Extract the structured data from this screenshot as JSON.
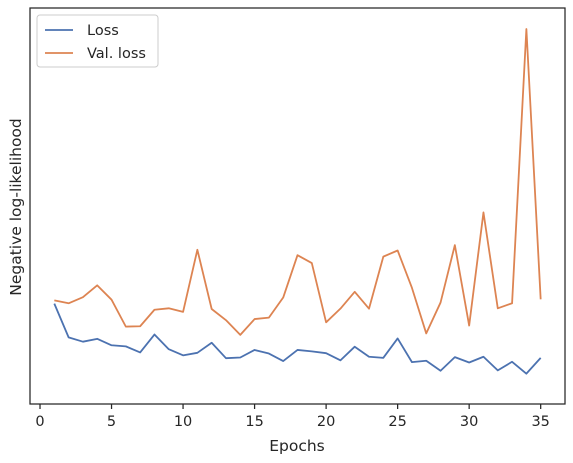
{
  "chart_data": {
    "type": "line",
    "title": "",
    "xlabel": "Epochs",
    "ylabel": "Negative log-likelihood",
    "xlim": [
      -0.7,
      36.7
    ],
    "ylim": [
      0,
      1
    ],
    "x_ticks": [
      0,
      5,
      10,
      15,
      20,
      25,
      30,
      35
    ],
    "y_ticks_shown": false,
    "grid": false,
    "legend_position": "top-left",
    "x": [
      1,
      2,
      3,
      4,
      5,
      6,
      7,
      8,
      9,
      10,
      11,
      12,
      13,
      14,
      15,
      16,
      17,
      18,
      19,
      20,
      21,
      22,
      23,
      24,
      25,
      26,
      27,
      28,
      29,
      30,
      31,
      32,
      33,
      34,
      35
    ],
    "series": [
      {
        "name": "Loss",
        "color": "#4c72b0",
        "values": [
          0.235,
          0.141,
          0.129,
          0.137,
          0.119,
          0.116,
          0.099,
          0.149,
          0.108,
          0.091,
          0.098,
          0.126,
          0.083,
          0.085,
          0.106,
          0.096,
          0.075,
          0.106,
          0.102,
          0.097,
          0.077,
          0.115,
          0.087,
          0.084,
          0.138,
          0.072,
          0.076,
          0.048,
          0.086,
          0.071,
          0.087,
          0.049,
          0.073,
          0.04,
          0.084
        ]
      },
      {
        "name": "Val. loss",
        "color": "#dd8452",
        "values": [
          0.244,
          0.236,
          0.253,
          0.286,
          0.246,
          0.171,
          0.172,
          0.218,
          0.222,
          0.212,
          0.385,
          0.22,
          0.189,
          0.148,
          0.192,
          0.196,
          0.252,
          0.37,
          0.348,
          0.183,
          0.221,
          0.268,
          0.221,
          0.366,
          0.383,
          0.279,
          0.152,
          0.238,
          0.398,
          0.174,
          0.489,
          0.222,
          0.236,
          1.0,
          0.247
        ]
      }
    ]
  }
}
